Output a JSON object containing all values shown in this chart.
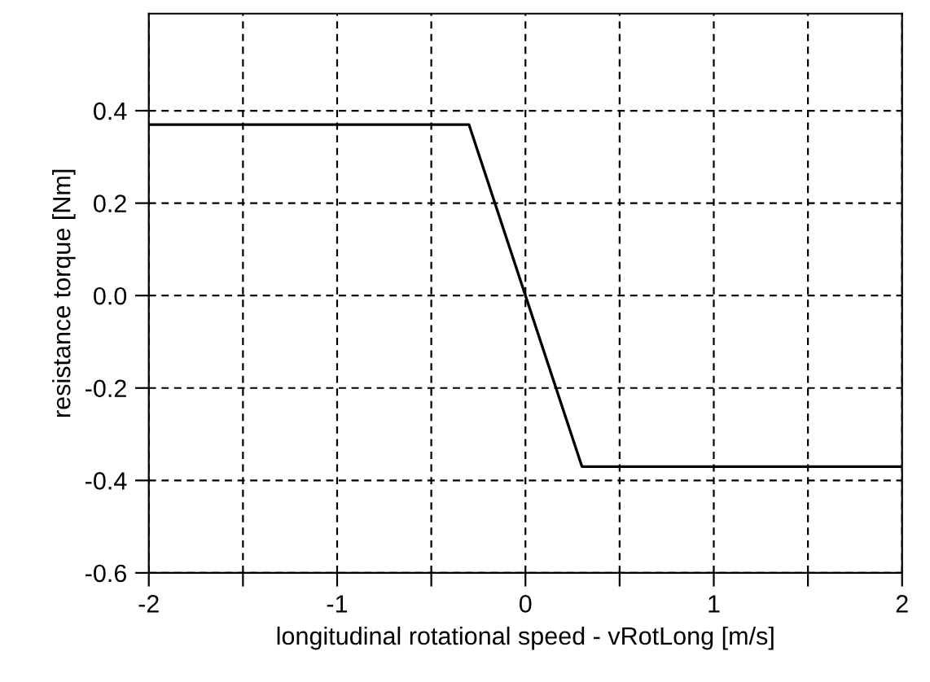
{
  "chart_data": {
    "type": "line",
    "xlabel": "longitudinal rotational speed - vRotLong [m/s]",
    "ylabel": "resistance torque [Nm]",
    "x": [
      -2,
      -0.3,
      0.3,
      2
    ],
    "series": [
      {
        "color": "#000000",
        "values": [
          0.37,
          0.37,
          -0.37,
          -0.37
        ]
      }
    ],
    "xlim": [
      -2,
      2
    ],
    "ylim": [
      -0.6,
      0.61
    ],
    "xticks": [
      -2,
      {
        "value": -1.5,
        "label": null
      },
      -1,
      {
        "value": -0.5,
        "label": null
      },
      0,
      {
        "value": 0.5,
        "label": null
      },
      1,
      {
        "value": 1.5,
        "label": null
      },
      2
    ],
    "yticks": [
      {
        "value": -0.6,
        "label": "-0.6"
      },
      {
        "value": -0.4,
        "label": "-0.4"
      },
      {
        "value": -0.2,
        "label": "-0.2"
      },
      {
        "value": 0.0,
        "label": "0.0"
      },
      {
        "value": 0.2,
        "label": "0.2"
      },
      {
        "value": 0.4,
        "label": "0.4"
      }
    ],
    "grid": true,
    "line_style": "solid",
    "marker": "none"
  }
}
